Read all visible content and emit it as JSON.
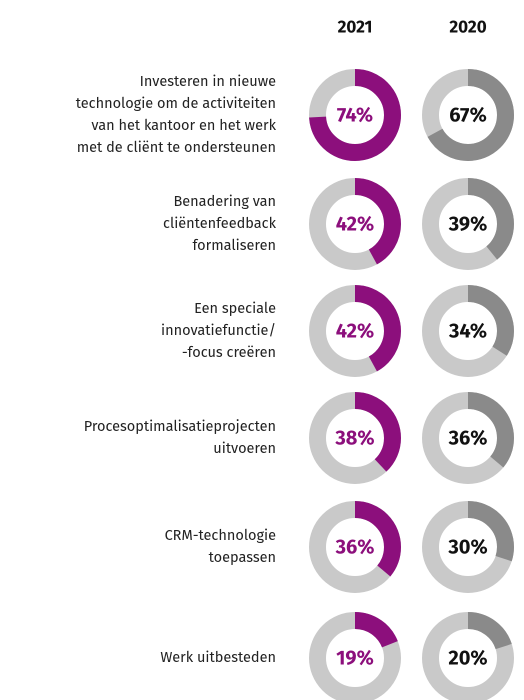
{
  "chart_data": {
    "type": "donut",
    "categories": [
      [
        "Investeren in nieuwe",
        "technologie om de activiteiten",
        "van het kantoor en het werk",
        "met de cliënt te ondersteunen"
      ],
      [
        "Benadering van",
        "cliëntenfeedback",
        "formaliseren"
      ],
      [
        "Een speciale",
        "innovatiefunctie/",
        "-focus creëren"
      ],
      [
        "Procesoptimalisatieprojecten",
        "uitvoeren"
      ],
      [
        "CRM-technologie",
        "toepassen"
      ],
      [
        "Werk uitbesteden"
      ]
    ],
    "series": [
      {
        "name": "2021",
        "color": "#8c0f7c",
        "label_color": "#8c0f7c",
        "values": [
          74,
          42,
          42,
          38,
          36,
          19
        ],
        "value_labels": [
          "74%",
          "42%",
          "42%",
          "38%",
          "36%",
          "19%"
        ]
      },
      {
        "name": "2020",
        "color": "#8a8a8a",
        "label_color": "#111111",
        "values": [
          67,
          39,
          34,
          36,
          30,
          20
        ],
        "value_labels": [
          "67%",
          "39%",
          "34%",
          "36%",
          "30%",
          "20%"
        ]
      }
    ],
    "remainder_color": "#c9c9c9",
    "total": 100
  }
}
